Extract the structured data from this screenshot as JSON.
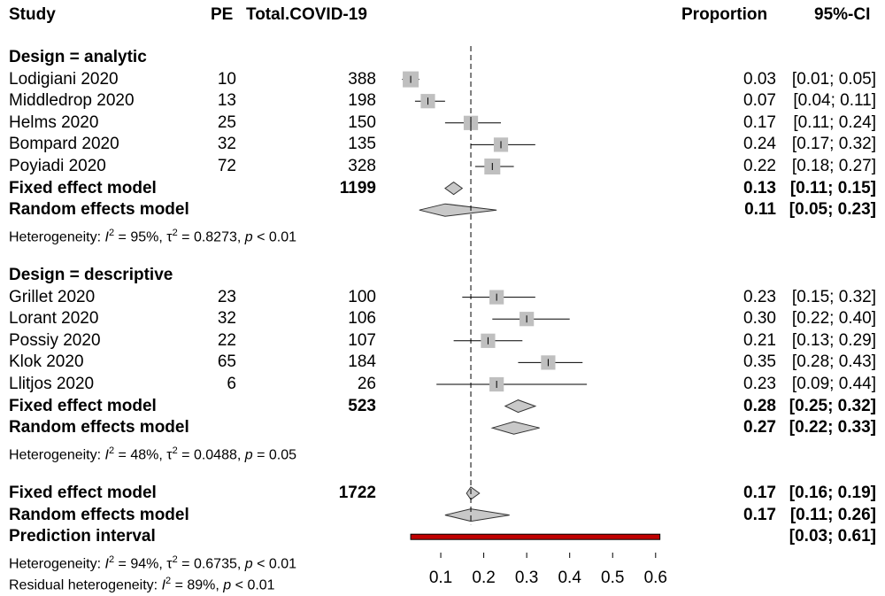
{
  "headers": {
    "study": "Study",
    "pe": "PE",
    "total": "Total.COVID-19",
    "proportion": "Proportion",
    "ci": "95%-CI"
  },
  "colors": {
    "square": "#bfbfbf",
    "diamond": "#c8c8c8",
    "prediction": "#c00000",
    "line": "#000000"
  },
  "chart_data": {
    "type": "forest",
    "xlim": [
      0.0,
      0.6
    ],
    "xticks": [
      "0.1",
      "0.2",
      "0.3",
      "0.4",
      "0.5",
      "0.6"
    ],
    "reference_line": 0.17,
    "groups": [
      {
        "label": "Design = analytic",
        "studies": [
          {
            "name": "Lodigiani 2020",
            "pe": "10",
            "total": "388",
            "est": 0.03,
            "lo": 0.01,
            "hi": 0.05,
            "weight": 1.0,
            "prop": "0.03",
            "ci": "[0.01; 0.05]"
          },
          {
            "name": "Middledrop 2020",
            "pe": "13",
            "total": "198",
            "est": 0.07,
            "lo": 0.04,
            "hi": 0.11,
            "weight": 0.9,
            "prop": "0.07",
            "ci": "[0.04; 0.11]"
          },
          {
            "name": "Helms 2020",
            "pe": "25",
            "total": "150",
            "est": 0.17,
            "lo": 0.11,
            "hi": 0.24,
            "weight": 0.9,
            "prop": "0.17",
            "ci": "[0.11; 0.24]"
          },
          {
            "name": "Bompard 2020",
            "pe": "32",
            "total": "135",
            "est": 0.24,
            "lo": 0.17,
            "hi": 0.32,
            "weight": 0.9,
            "prop": "0.24",
            "ci": "[0.17; 0.32]"
          },
          {
            "name": "Poyiadi 2020",
            "pe": "72",
            "total": "328",
            "est": 0.22,
            "lo": 0.18,
            "hi": 0.27,
            "weight": 1.0,
            "prop": "0.22",
            "ci": "[0.18; 0.27]"
          }
        ],
        "fixed": {
          "label": "Fixed effect model",
          "total": "1199",
          "est": 0.13,
          "lo": 0.11,
          "hi": 0.15,
          "prop": "0.13",
          "ci": "[0.11; 0.15]"
        },
        "random": {
          "label": "Random effects model",
          "est": 0.11,
          "lo": 0.05,
          "hi": 0.23,
          "prop": "0.11",
          "ci": "[0.05; 0.23]"
        },
        "het": {
          "prefix": "Heterogeneity: ",
          "i2": "I",
          "i2_val": " = 95%, ",
          "tau": "τ",
          "tau_val": " = 0.8273, ",
          "p": "p",
          "p_val": " < 0.01"
        }
      },
      {
        "label": "Design = descriptive",
        "studies": [
          {
            "name": "Grillet 2020",
            "pe": "23",
            "total": "100",
            "est": 0.23,
            "lo": 0.15,
            "hi": 0.32,
            "weight": 0.9,
            "prop": "0.23",
            "ci": "[0.15; 0.32]"
          },
          {
            "name": "Lorant 2020",
            "pe": "32",
            "total": "106",
            "est": 0.3,
            "lo": 0.22,
            "hi": 0.4,
            "weight": 0.9,
            "prop": "0.30",
            "ci": "[0.22; 0.40]"
          },
          {
            "name": "Possiy 2020",
            "pe": "22",
            "total": "107",
            "est": 0.21,
            "lo": 0.13,
            "hi": 0.29,
            "weight": 0.9,
            "prop": "0.21",
            "ci": "[0.13; 0.29]"
          },
          {
            "name": "Klok 2020",
            "pe": "65",
            "total": "184",
            "est": 0.35,
            "lo": 0.28,
            "hi": 0.43,
            "weight": 0.9,
            "prop": "0.35",
            "ci": "[0.28; 0.43]"
          },
          {
            "name": "Llitjos 2020",
            "pe": "6",
            "total": "26",
            "est": 0.23,
            "lo": 0.09,
            "hi": 0.44,
            "weight": 0.9,
            "prop": "0.23",
            "ci": "[0.09; 0.44]"
          }
        ],
        "fixed": {
          "label": "Fixed effect model",
          "total": "523",
          "est": 0.28,
          "lo": 0.25,
          "hi": 0.32,
          "prop": "0.28",
          "ci": "[0.25; 0.32]"
        },
        "random": {
          "label": "Random effects model",
          "est": 0.27,
          "lo": 0.22,
          "hi": 0.33,
          "prop": "0.27",
          "ci": "[0.22; 0.33]"
        },
        "het": {
          "prefix": "Heterogeneity: ",
          "i2": "I",
          "i2_val": " = 48%, ",
          "tau": "τ",
          "tau_val": " = 0.0488, ",
          "p": "p",
          "p_val": " = 0.05"
        }
      }
    ],
    "overall": {
      "fixed": {
        "label": "Fixed effect model",
        "total": "1722",
        "est": 0.17,
        "lo": 0.16,
        "hi": 0.19,
        "prop": "0.17",
        "ci": "[0.16; 0.19]"
      },
      "random": {
        "label": "Random effects model",
        "est": 0.17,
        "lo": 0.11,
        "hi": 0.26,
        "prop": "0.17",
        "ci": "[0.11; 0.26]"
      },
      "prediction": {
        "label": "Prediction interval",
        "lo": 0.03,
        "hi": 0.61,
        "ci": "[0.03; 0.61]"
      },
      "het": {
        "prefix": "Heterogeneity: ",
        "i2": "I",
        "i2_val": " = 94%, ",
        "tau": "τ",
        "tau_val": " = 0.6735, ",
        "p": "p",
        "p_val": " < 0.01"
      },
      "resid": {
        "prefix": "Residual heterogeneity: ",
        "i2": "I",
        "i2_val": " = 89%, ",
        "p": "p",
        "p_val": " < 0.01"
      }
    }
  }
}
